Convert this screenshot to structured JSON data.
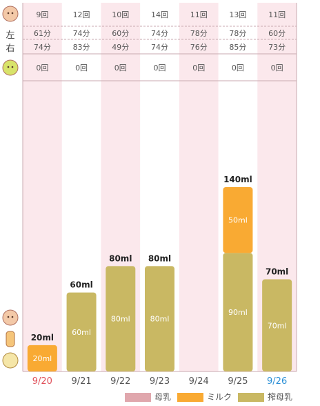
{
  "colors": {
    "breastmilk": "#e0a7ad",
    "formula": "#f9aa33",
    "pumped": "#c9b863",
    "col_pink": "#fbe8ec",
    "grid": "#c8aab0",
    "today": "#2a8fd6",
    "weekend_sun": "#e0505a"
  },
  "icons": {
    "row1": "baby-face-icon",
    "row4": "baby-burp-icon",
    "axis1": "baby-face-icon",
    "axis2": "bottle-icon",
    "axis3": "baby-bottle-feed-icon"
  },
  "row_labels": {
    "left": "左",
    "right": "右"
  },
  "table": {
    "count": [
      "9回",
      "12回",
      "10回",
      "14回",
      "11回",
      "13回",
      "11回"
    ],
    "left": [
      "61分",
      "74分",
      "60分",
      "74分",
      "78分",
      "78分",
      "60分"
    ],
    "right": [
      "74分",
      "83分",
      "49分",
      "74分",
      "76分",
      "85分",
      "73分"
    ],
    "other": [
      "0回",
      "0回",
      "0回",
      "0回",
      "0回",
      "0回",
      "0回"
    ]
  },
  "chart_data": {
    "type": "bar",
    "stacked": true,
    "categories": [
      "9/20",
      "9/21",
      "9/22",
      "9/23",
      "9/24",
      "9/25",
      "9/26"
    ],
    "series": [
      {
        "name": "母乳",
        "values": [
          0,
          0,
          0,
          0,
          0,
          0,
          0
        ]
      },
      {
        "name": "ミルク",
        "values": [
          20,
          0,
          0,
          0,
          0,
          50,
          0
        ]
      },
      {
        "name": "搾母乳",
        "values": [
          0,
          60,
          80,
          80,
          0,
          90,
          70
        ]
      }
    ],
    "totals": [
      "20ml",
      "60ml",
      "80ml",
      "80ml",
      "",
      "140ml",
      "70ml"
    ],
    "segment_labels": {
      "ミルク": [
        "20ml",
        "",
        "",
        "",
        "",
        "50ml",
        ""
      ],
      "搾母乳": [
        "",
        "60ml",
        "80ml",
        "80ml",
        "",
        "90ml",
        "70ml"
      ]
    },
    "ylim": [
      0,
      140
    ],
    "legend_position": "bottom"
  },
  "legend": [
    "母乳",
    "ミルク",
    "搾母乳"
  ]
}
